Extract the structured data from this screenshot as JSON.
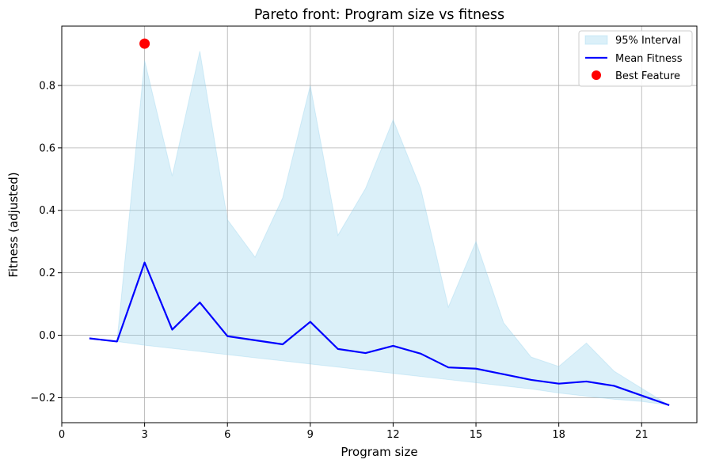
{
  "chart_data": {
    "type": "line",
    "title": "Pareto front: Program size vs fitness",
    "xlabel": "Program size",
    "ylabel": "Fitness (adjusted)",
    "xlim": [
      0,
      23
    ],
    "ylim": [
      -0.28,
      0.99
    ],
    "xticks": [
      0,
      3,
      6,
      9,
      12,
      15,
      18,
      21
    ],
    "yticks": [
      -0.2,
      0.0,
      0.2,
      0.4,
      0.6,
      0.8
    ],
    "xtick_labels": [
      "0",
      "3",
      "6",
      "9",
      "12",
      "15",
      "18",
      "21"
    ],
    "ytick_labels": [
      "−0.2",
      "0.0",
      "0.2",
      "0.4",
      "0.6",
      "0.8"
    ],
    "grid": true,
    "legend_position": "top-right",
    "x": [
      1,
      2,
      3,
      4,
      5,
      6,
      7,
      8,
      9,
      10,
      11,
      12,
      13,
      14,
      15,
      16,
      17,
      18,
      19,
      20,
      21,
      22
    ],
    "series": [
      {
        "name": "Mean Fitness",
        "kind": "line",
        "color": "#0000ff",
        "values": [
          -0.01,
          -0.02,
          0.233,
          0.018,
          0.105,
          -0.003,
          -0.016,
          -0.029,
          0.043,
          -0.044,
          -0.057,
          -0.034,
          -0.059,
          -0.103,
          -0.107,
          -0.125,
          -0.143,
          -0.155,
          -0.148,
          -0.162,
          -0.193,
          -0.224
        ]
      },
      {
        "name": "95% Interval",
        "kind": "band",
        "color": "#87ceeb",
        "x": [
          2,
          3,
          4,
          5,
          6,
          7,
          8,
          9,
          10,
          11,
          12,
          13,
          14,
          15,
          16,
          17,
          18,
          19,
          20,
          21,
          22
        ],
        "upper": [
          -0.02,
          0.88,
          0.51,
          0.91,
          0.37,
          0.25,
          0.44,
          0.8,
          0.32,
          0.47,
          0.69,
          0.47,
          0.09,
          0.3,
          0.04,
          -0.07,
          -0.1,
          -0.025,
          -0.115,
          -0.17,
          -0.224
        ],
        "lower": [
          -0.02,
          -0.032,
          -0.042,
          -0.052,
          -0.062,
          -0.072,
          -0.082,
          -0.092,
          -0.102,
          -0.112,
          -0.122,
          -0.132,
          -0.142,
          -0.152,
          -0.162,
          -0.172,
          -0.185,
          -0.195,
          -0.205,
          -0.212,
          -0.224
        ]
      },
      {
        "name": "Best Feature",
        "kind": "point",
        "color": "#ff0000",
        "x": [
          3
        ],
        "values": [
          0.934
        ]
      }
    ],
    "legend": [
      "95% Interval",
      "Mean Fitness",
      "Best Feature"
    ]
  }
}
